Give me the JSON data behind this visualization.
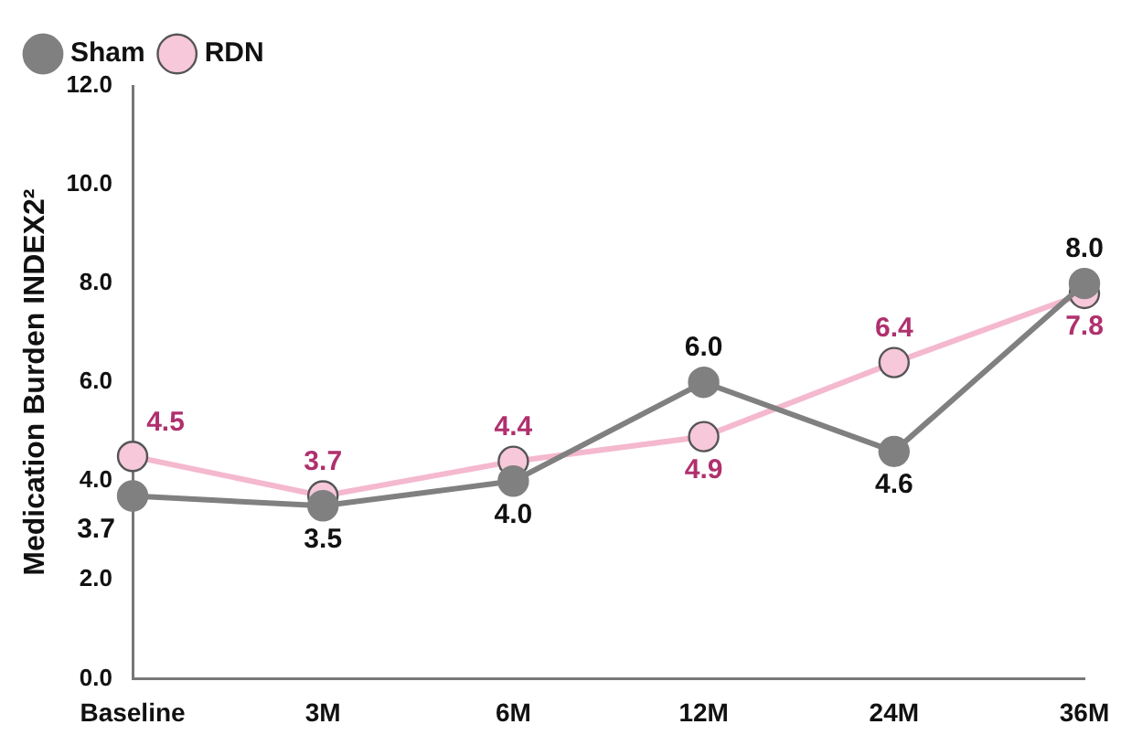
{
  "chart_data": {
    "type": "line",
    "ylabel": "Medication Burden INDEX2²",
    "categories": [
      "Baseline",
      "3M",
      "6M",
      "12M",
      "24M",
      "36M"
    ],
    "series": [
      {
        "name": "Sham",
        "color": "#808080",
        "values": [
          3.7,
          3.5,
          4.0,
          6.0,
          4.6,
          8.0
        ],
        "value_labels": [
          "3.7",
          "3.5",
          "4.0",
          "6.0",
          "4.6",
          "8.0"
        ]
      },
      {
        "name": "RDN",
        "color": "#f4b8cf",
        "values": [
          4.5,
          3.7,
          4.4,
          4.9,
          6.4,
          7.8
        ],
        "value_labels": [
          "4.5",
          "3.7",
          "4.4",
          "4.9",
          "6.4",
          "7.8"
        ]
      }
    ],
    "ylim": [
      0,
      12
    ],
    "yticks": [
      {
        "value": 0,
        "label": "0.0"
      },
      {
        "value": 2,
        "label": "2.0"
      },
      {
        "value": 4,
        "label": "4.0"
      },
      {
        "value": 6,
        "label": "6.0"
      },
      {
        "value": 8,
        "label": "8.0"
      },
      {
        "value": 10,
        "label": "10.0"
      },
      {
        "value": 12,
        "label": "12.0"
      }
    ],
    "grid": false,
    "legend": "top left",
    "marker": "circle",
    "line_style": "solid"
  }
}
